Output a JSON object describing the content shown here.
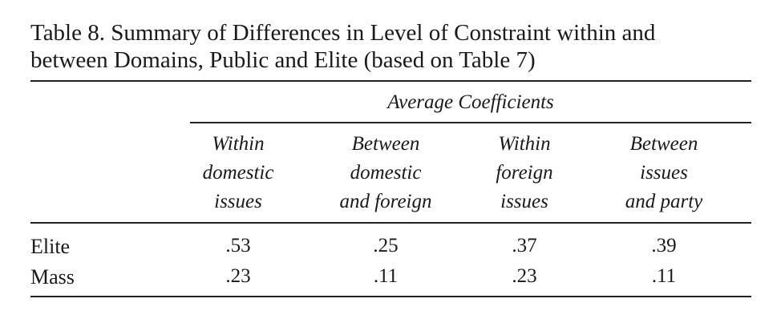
{
  "table": {
    "title_lines": [
      "Table 8. Summary of Differences in Level of Constraint within and",
      "between Domains, Public and Elite (based on Table 7)"
    ],
    "group_header": "Average Coefficients",
    "columns": [
      [
        "Within",
        "domestic",
        "issues"
      ],
      [
        "Between",
        "domestic",
        "and foreign"
      ],
      [
        "Within",
        "foreign",
        "issues"
      ],
      [
        "Between",
        "issues",
        "and party"
      ]
    ],
    "rows": [
      [
        "Elite",
        ".53",
        ".25",
        ".37",
        ".39"
      ],
      [
        "Mass",
        ".23",
        ".11",
        ".23",
        ".11"
      ]
    ]
  }
}
